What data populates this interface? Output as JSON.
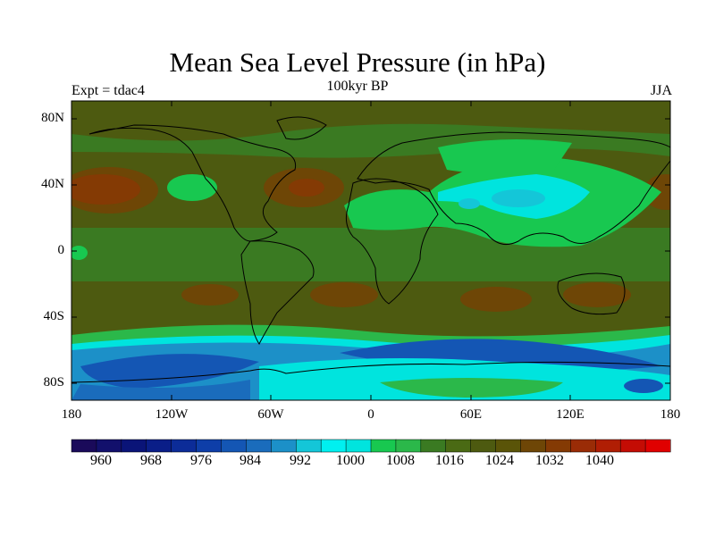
{
  "title": "Mean Sea Level Pressure (in hPa)",
  "subtitle": "100kyr BP",
  "left_label": "Expt = tdac4",
  "right_label": "JJA",
  "lat_ticks": [
    "80N",
    "40N",
    "0",
    "40S",
    "80S"
  ],
  "lon_ticks": [
    "180",
    "120W",
    "60W",
    "0",
    "60E",
    "120E",
    "180"
  ],
  "colorbar": {
    "labels": [
      "960",
      "968",
      "976",
      "984",
      "992",
      "1000",
      "1008",
      "1016",
      "1024",
      "1032",
      "1040"
    ],
    "colors": [
      "#1a0a5a",
      "#12106c",
      "#0a1478",
      "#0a1e88",
      "#0c2c98",
      "#0e3ea8",
      "#1456b4",
      "#1a6cbc",
      "#1c90c8",
      "#14c6d8",
      "#00f0f0",
      "#00e4de",
      "#18c850",
      "#2bb84a",
      "#3a7a22",
      "#4a6a14",
      "#4d5a10",
      "#5a5408",
      "#6e4606",
      "#843a04",
      "#9a2c06",
      "#b01e04",
      "#c40c04",
      "#e00000"
    ]
  }
}
